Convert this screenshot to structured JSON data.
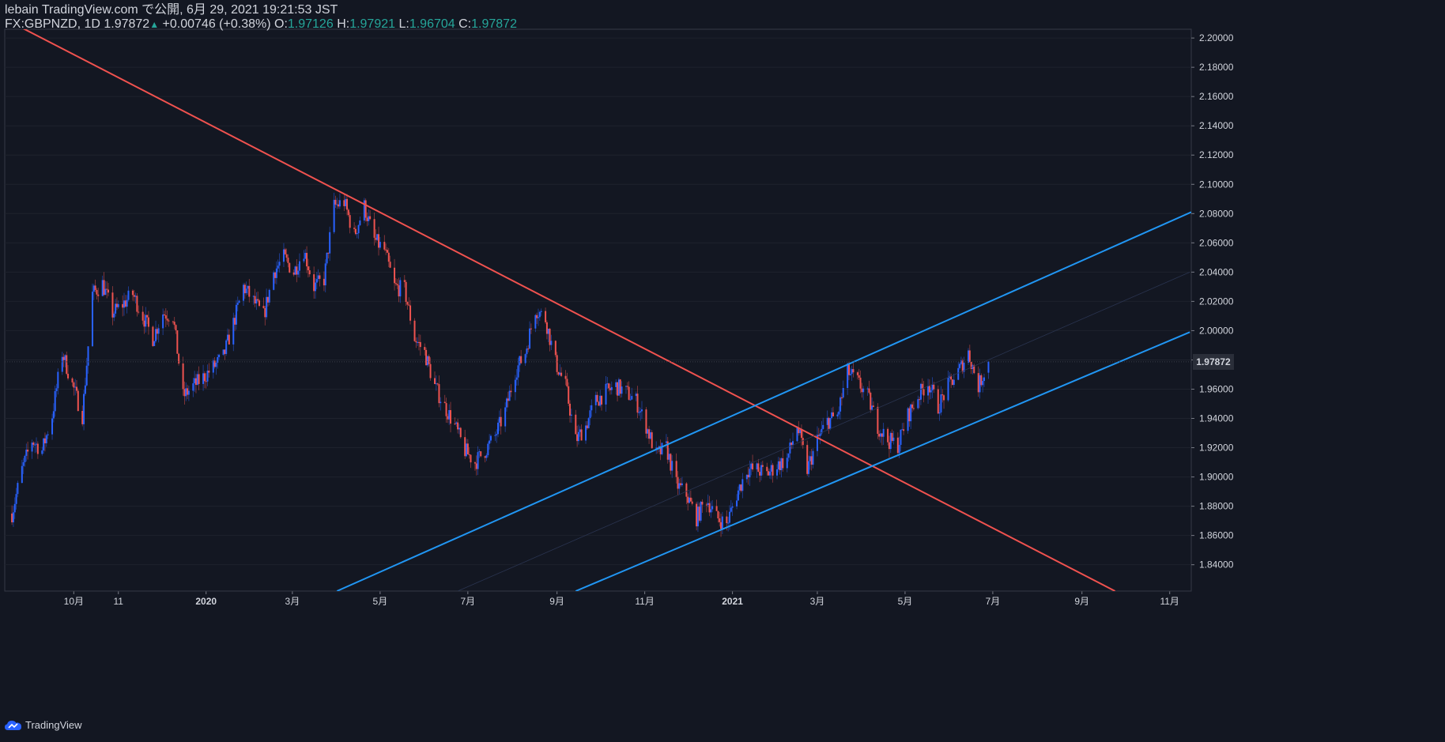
{
  "header": {
    "author_line": "lebain TradingView.com で公開, 6月 29, 2021 19:21:53 JST",
    "symbol": "FX:GBPNZD, 1D",
    "last": "1.97872",
    "arrow": "▲",
    "change": "+0.00746 (+0.38%)",
    "o_label": "O:",
    "o_value": "1.97126",
    "h_label": "H:",
    "h_value": "1.97921",
    "l_label": "L:",
    "l_value": "1.96704",
    "c_label": "C:",
    "c_value": "1.97872"
  },
  "footer": {
    "brand": "TradingView"
  },
  "colors": {
    "background": "#131722",
    "up": "#2962ff",
    "down": "#ef5350",
    "resistance": "#f0524f",
    "channel": "#2196f3",
    "grid": "#1e222d",
    "axis_text": "#d1d4dc"
  },
  "chart_data": {
    "type": "candlestick",
    "symbol": "FX:GBPNZD",
    "timeframe": "1D",
    "ylim": [
      1.822,
      2.206
    ],
    "y_ticks": [
      "2.20000",
      "2.18000",
      "2.16000",
      "2.14000",
      "2.12000",
      "2.10000",
      "2.08000",
      "2.06000",
      "2.04000",
      "2.02000",
      "2.00000",
      "1.98000",
      "1.96000",
      "1.94000",
      "1.92000",
      "1.90000",
      "1.88000",
      "1.86000",
      "1.84000"
    ],
    "x_ticks": [
      "10月",
      "11",
      "2020",
      "3月",
      "5月",
      "7月",
      "9月",
      "11月",
      "2021",
      "3月",
      "5月",
      "7月",
      "9月",
      "11月"
    ],
    "last_price_label": "1.97872",
    "close_path": [
      [
        "2019-08-19",
        1.875
      ],
      [
        "2019-08-26",
        1.905
      ],
      [
        "2019-09-02",
        1.925
      ],
      [
        "2019-09-09",
        1.918
      ],
      [
        "2019-09-16",
        1.942
      ],
      [
        "2019-09-23",
        1.985
      ],
      [
        "2019-09-30",
        1.963
      ],
      [
        "2019-10-07",
        1.942
      ],
      [
        "2019-10-14",
        2.025
      ],
      [
        "2019-10-21",
        2.032
      ],
      [
        "2019-10-28",
        2.012
      ],
      [
        "2019-11-04",
        2.018
      ],
      [
        "2019-11-11",
        2.025
      ],
      [
        "2019-11-18",
        2.01
      ],
      [
        "2019-11-25",
        1.995
      ],
      [
        "2019-12-02",
        2.012
      ],
      [
        "2019-12-09",
        2.01
      ],
      [
        "2019-12-16",
        1.955
      ],
      [
        "2019-12-23",
        1.962
      ],
      [
        "2019-12-30",
        1.968
      ],
      [
        "2020-01-06",
        1.975
      ],
      [
        "2020-01-13",
        1.982
      ],
      [
        "2020-01-20",
        2.005
      ],
      [
        "2020-01-27",
        2.03
      ],
      [
        "2020-02-03",
        2.02
      ],
      [
        "2020-02-10",
        2.01
      ],
      [
        "2020-02-17",
        2.04
      ],
      [
        "2020-02-24",
        2.05
      ],
      [
        "2020-03-02",
        2.04
      ],
      [
        "2020-03-09",
        2.055
      ],
      [
        "2020-03-16",
        2.03
      ],
      [
        "2020-03-23",
        2.035
      ],
      [
        "2020-03-30",
        2.085
      ],
      [
        "2020-04-06",
        2.088
      ],
      [
        "2020-04-13",
        2.065
      ],
      [
        "2020-04-20",
        2.085
      ],
      [
        "2020-04-27",
        2.062
      ],
      [
        "2020-05-04",
        2.055
      ],
      [
        "2020-05-11",
        2.03
      ],
      [
        "2020-05-18",
        2.028
      ],
      [
        "2020-05-25",
        1.995
      ],
      [
        "2020-06-01",
        1.985
      ],
      [
        "2020-06-08",
        1.962
      ],
      [
        "2020-06-15",
        1.948
      ],
      [
        "2020-06-22",
        1.935
      ],
      [
        "2020-06-29",
        1.918
      ],
      [
        "2020-07-06",
        1.91
      ],
      [
        "2020-07-13",
        1.918
      ],
      [
        "2020-07-20",
        1.928
      ],
      [
        "2020-07-27",
        1.945
      ],
      [
        "2020-08-03",
        1.972
      ],
      [
        "2020-08-10",
        1.985
      ],
      [
        "2020-08-17",
        2.015
      ],
      [
        "2020-08-24",
        2.008
      ],
      [
        "2020-08-31",
        1.978
      ],
      [
        "2020-09-07",
        1.962
      ],
      [
        "2020-09-14",
        1.925
      ],
      [
        "2020-09-21",
        1.935
      ],
      [
        "2020-09-28",
        1.952
      ],
      [
        "2020-10-05",
        1.958
      ],
      [
        "2020-10-12",
        1.962
      ],
      [
        "2020-10-19",
        1.958
      ],
      [
        "2020-10-26",
        1.952
      ],
      [
        "2020-11-02",
        1.935
      ],
      [
        "2020-11-09",
        1.915
      ],
      [
        "2020-11-16",
        1.92
      ],
      [
        "2020-11-23",
        1.895
      ],
      [
        "2020-11-30",
        1.888
      ],
      [
        "2020-12-07",
        1.872
      ],
      [
        "2020-12-14",
        1.885
      ],
      [
        "2020-12-21",
        1.872
      ],
      [
        "2020-12-28",
        1.868
      ],
      [
        "2021-01-04",
        1.888
      ],
      [
        "2021-01-11",
        1.905
      ],
      [
        "2021-01-18",
        1.905
      ],
      [
        "2021-01-25",
        1.902
      ],
      [
        "2021-02-01",
        1.908
      ],
      [
        "2021-02-08",
        1.912
      ],
      [
        "2021-02-15",
        1.935
      ],
      [
        "2021-02-22",
        1.905
      ],
      [
        "2021-03-01",
        1.925
      ],
      [
        "2021-03-08",
        1.938
      ],
      [
        "2021-03-15",
        1.942
      ],
      [
        "2021-03-22",
        1.972
      ],
      [
        "2021-03-29",
        1.965
      ],
      [
        "2021-04-05",
        1.955
      ],
      [
        "2021-04-12",
        1.935
      ],
      [
        "2021-04-19",
        1.925
      ],
      [
        "2021-04-26",
        1.922
      ],
      [
        "2021-05-03",
        1.942
      ],
      [
        "2021-05-10",
        1.955
      ],
      [
        "2021-05-17",
        1.965
      ],
      [
        "2021-05-24",
        1.948
      ],
      [
        "2021-05-31",
        1.962
      ],
      [
        "2021-06-07",
        1.972
      ],
      [
        "2021-06-14",
        1.985
      ],
      [
        "2021-06-21",
        1.962
      ],
      [
        "2021-06-28",
        1.97872
      ]
    ],
    "trendlines": [
      {
        "name": "resistance",
        "color": "#f0524f",
        "from": [
          "2019-08-14",
          2.213
        ],
        "to": [
          "2021-09-24",
          1.822
        ]
      },
      {
        "name": "channel-upper",
        "color": "#2196f3",
        "from": [
          "2020-04-01",
          1.822
        ],
        "to": [
          "2021-11-16",
          2.081
        ]
      },
      {
        "name": "channel-lower",
        "color": "#2196f3",
        "from": [
          "2020-09-14",
          1.822
        ],
        "to": [
          "2021-11-15",
          1.999
        ]
      },
      {
        "name": "channel-mid",
        "color": "#2a3450",
        "from": [
          "2020-06-24",
          1.822
        ],
        "to": [
          "2021-11-15",
          2.04
        ]
      }
    ],
    "grid": true,
    "legend": "none"
  }
}
